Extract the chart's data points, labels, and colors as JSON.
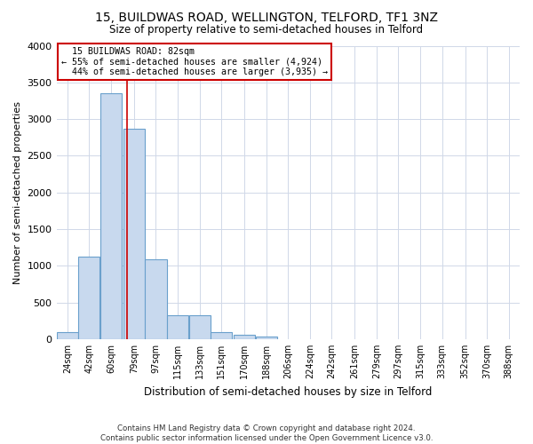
{
  "title": "15, BUILDWAS ROAD, WELLINGTON, TELFORD, TF1 3NZ",
  "subtitle": "Size of property relative to semi-detached houses in Telford",
  "xlabel": "Distribution of semi-detached houses by size in Telford",
  "ylabel": "Number of semi-detached properties",
  "footer": "Contains HM Land Registry data © Crown copyright and database right 2024.\nContains public sector information licensed under the Open Government Licence v3.0.",
  "property_size": 82,
  "property_label": "15 BUILDWAS ROAD: 82sqm",
  "pct_smaller": 55,
  "count_smaller": 4924,
  "pct_larger": 44,
  "count_larger": 3935,
  "bar_color": "#c8d9ee",
  "bar_edge_color": "#6aa0cc",
  "vline_color": "#cc0000",
  "annotation_box_color": "#cc0000",
  "background_color": "#ffffff",
  "grid_color": "#d0d8e8",
  "categories": [
    "24sqm",
    "42sqm",
    "60sqm",
    "79sqm",
    "97sqm",
    "115sqm",
    "133sqm",
    "151sqm",
    "170sqm",
    "188sqm",
    "206sqm",
    "224sqm",
    "242sqm",
    "261sqm",
    "279sqm",
    "297sqm",
    "315sqm",
    "333sqm",
    "352sqm",
    "370sqm",
    "388sqm"
  ],
  "bar_left_edges": [
    24,
    42,
    60,
    79,
    97,
    115,
    133,
    151,
    170,
    188,
    206,
    224,
    242,
    261,
    279,
    297,
    315,
    333,
    352,
    370,
    388
  ],
  "bar_widths": [
    18,
    18,
    18,
    18,
    18,
    18,
    18,
    18,
    18,
    18,
    18,
    18,
    18,
    18,
    18,
    18,
    18,
    18,
    18,
    18,
    18
  ],
  "values": [
    100,
    1120,
    3350,
    2870,
    1090,
    320,
    320,
    100,
    55,
    30,
    0,
    0,
    0,
    0,
    0,
    0,
    0,
    0,
    0,
    0,
    0
  ],
  "ylim": [
    0,
    4000
  ],
  "xlim": [
    24,
    406
  ]
}
